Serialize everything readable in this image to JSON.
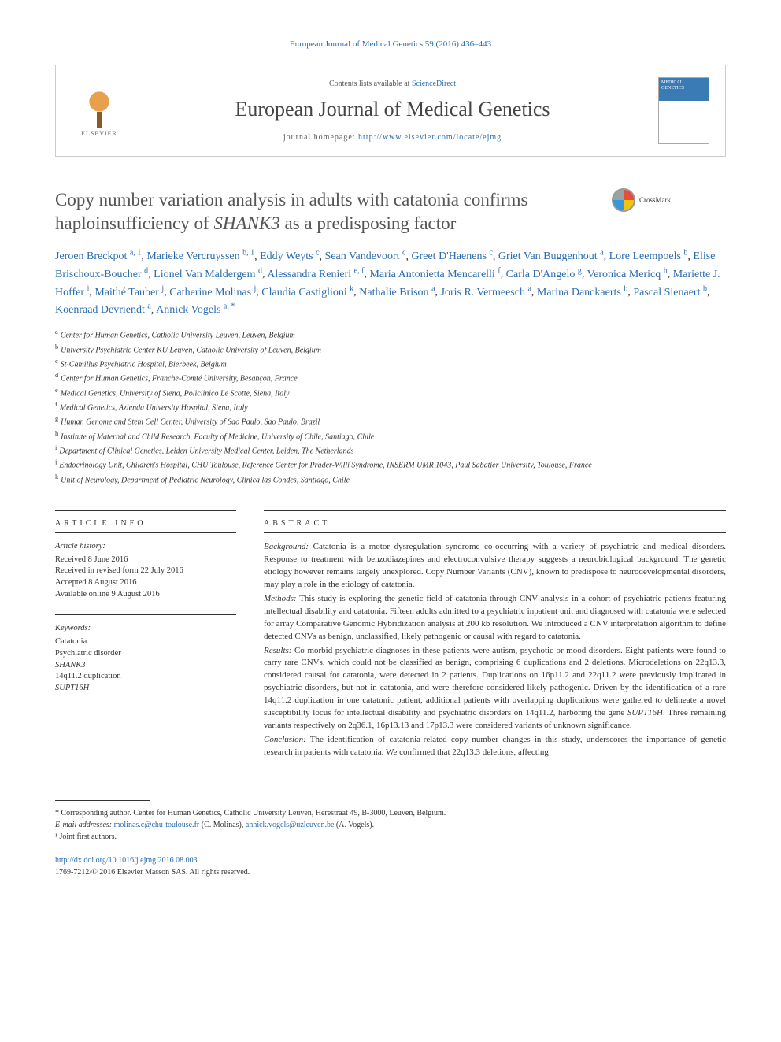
{
  "journal_ref": "European Journal of Medical Genetics 59 (2016) 436–443",
  "header": {
    "publisher": "ELSEVIER",
    "contents_prefix": "Contents lists available at ",
    "contents_link": "ScienceDirect",
    "journal_name": "European Journal of Medical Genetics",
    "homepage_prefix": "journal homepage: ",
    "homepage_url": "http://www.elsevier.com/locate/ejmg",
    "cover_label": "MEDICAL GENETICS"
  },
  "crossmark_label": "CrossMark",
  "title": "Copy number variation analysis in adults with catatonia confirms haploinsufficiency of SHANK3 as a predisposing factor",
  "authors": [
    {
      "name": "Jeroen Breckpot",
      "aff": "a, 1"
    },
    {
      "name": "Marieke Vercruyssen",
      "aff": "b, 1"
    },
    {
      "name": "Eddy Weyts",
      "aff": "c"
    },
    {
      "name": "Sean Vandevoort",
      "aff": "c"
    },
    {
      "name": "Greet D'Haenens",
      "aff": "c"
    },
    {
      "name": "Griet Van Buggenhout",
      "aff": "a"
    },
    {
      "name": "Lore Leempoels",
      "aff": "b"
    },
    {
      "name": "Elise Brischoux-Boucher",
      "aff": "d"
    },
    {
      "name": "Lionel Van Maldergem",
      "aff": "d"
    },
    {
      "name": "Alessandra Renieri",
      "aff": "e, f"
    },
    {
      "name": "Maria Antonietta Mencarelli",
      "aff": "f"
    },
    {
      "name": "Carla D'Angelo",
      "aff": "g"
    },
    {
      "name": "Veronica Mericq",
      "aff": "h"
    },
    {
      "name": "Mariette J. Hoffer",
      "aff": "i"
    },
    {
      "name": "Maithé Tauber",
      "aff": "j"
    },
    {
      "name": "Catherine Molinas",
      "aff": "j"
    },
    {
      "name": "Claudia Castiglioni",
      "aff": "k"
    },
    {
      "name": "Nathalie Brison",
      "aff": "a"
    },
    {
      "name": "Joris R. Vermeesch",
      "aff": "a"
    },
    {
      "name": "Marina Danckaerts",
      "aff": "b"
    },
    {
      "name": "Pascal Sienaert",
      "aff": "b"
    },
    {
      "name": "Koenraad Devriendt",
      "aff": "a"
    },
    {
      "name": "Annick Vogels",
      "aff": "a, *"
    }
  ],
  "affiliations": [
    {
      "key": "a",
      "text": "Center for Human Genetics, Catholic University Leuven, Leuven, Belgium"
    },
    {
      "key": "b",
      "text": "University Psychiatric Center KU Leuven, Catholic University of Leuven, Belgium"
    },
    {
      "key": "c",
      "text": "St-Camillus Psychiatric Hospital, Bierbeek, Belgium"
    },
    {
      "key": "d",
      "text": "Center for Human Genetics, Franche-Comté University, Besançon, France"
    },
    {
      "key": "e",
      "text": "Medical Genetics, University of Siena, Policlinico Le Scotte, Siena, Italy"
    },
    {
      "key": "f",
      "text": "Medical Genetics, Azienda University Hospital, Siena, Italy"
    },
    {
      "key": "g",
      "text": "Human Genome and Stem Cell Center, University of Sao Paulo, Sao Paulo, Brazil"
    },
    {
      "key": "h",
      "text": "Institute of Maternal and Child Research, Faculty of Medicine, University of Chile, Santiago, Chile"
    },
    {
      "key": "i",
      "text": "Department of Clinical Genetics, Leiden University Medical Center, Leiden, The Netherlands"
    },
    {
      "key": "j",
      "text": "Endocrinology Unit, Children's Hospital, CHU Toulouse, Reference Center for Prader-Willi Syndrome, INSERM UMR 1043, Paul Sabatier University, Toulouse, France"
    },
    {
      "key": "k",
      "text": "Unit of Neurology, Department of Pediatric Neurology, Clinica las Condes, Santiago, Chile"
    }
  ],
  "article_info": {
    "label": "ARTICLE INFO",
    "history_head": "Article history:",
    "history": [
      "Received 8 June 2016",
      "Received in revised form 22 July 2016",
      "Accepted 8 August 2016",
      "Available online 9 August 2016"
    ],
    "keywords_head": "Keywords:",
    "keywords": [
      "Catatonia",
      "Psychiatric disorder",
      "SHANK3",
      "14q11.2 duplication",
      "SUPT16H"
    ]
  },
  "abstract": {
    "label": "ABSTRACT",
    "sections": [
      {
        "head": "Background:",
        "text": "Catatonia is a motor dysregulation syndrome co-occurring with a variety of psychiatric and medical disorders. Response to treatment with benzodiazepines and electroconvulsive therapy suggests a neurobiological background. The genetic etiology however remains largely unexplored. Copy Number Variants (CNV), known to predispose to neurodevelopmental disorders, may play a role in the etiology of catatonia."
      },
      {
        "head": "Methods:",
        "text": "This study is exploring the genetic field of catatonia through CNV analysis in a cohort of psychiatric patients featuring intellectual disability and catatonia. Fifteen adults admitted to a psychiatric inpatient unit and diagnosed with catatonia were selected for array Comparative Genomic Hybridization analysis at 200 kb resolution. We introduced a CNV interpretation algorithm to define detected CNVs as benign, unclassified, likely pathogenic or causal with regard to catatonia."
      },
      {
        "head": "Results:",
        "text": "Co-morbid psychiatric diagnoses in these patients were autism, psychotic or mood disorders. Eight patients were found to carry rare CNVs, which could not be classified as benign, comprising 6 duplications and 2 deletions. Microdeletions on 22q13.3, considered causal for catatonia, were detected in 2 patients. Duplications on 16p11.2 and 22q11.2 were previously implicated in psychiatric disorders, but not in catatonia, and were therefore considered likely pathogenic. Driven by the identification of a rare 14q11.2 duplication in one catatonic patient, additional patients with overlapping duplications were gathered to delineate a novel susceptibility locus for intellectual disability and psychiatric disorders on 14q11.2, harboring the gene SUPT16H. Three remaining variants respectively on 2q36.1, 16p13.13 and 17p13.3 were considered variants of unknown significance."
      },
      {
        "head": "Conclusion:",
        "text": "The identification of catatonia-related copy number changes in this study, underscores the importance of genetic research in patients with catatonia. We confirmed that 22q13.3 deletions, affecting"
      }
    ]
  },
  "footer": {
    "corresponding": "* Corresponding author. Center for Human Genetics, Catholic University Leuven, Herestraat 49, B-3000, Leuven, Belgium.",
    "email_label": "E-mail addresses:",
    "emails": [
      {
        "addr": "molinas.c@chu-toulouse.fr",
        "who": "(C. Molinas)"
      },
      {
        "addr": "annick.vogels@uzleuven.be",
        "who": "(A. Vogels)."
      }
    ],
    "note1": "¹ Joint first authors.",
    "doi": "http://dx.doi.org/10.1016/j.ejmg.2016.08.003",
    "copyright": "1769-7212/© 2016 Elsevier Masson SAS. All rights reserved."
  }
}
